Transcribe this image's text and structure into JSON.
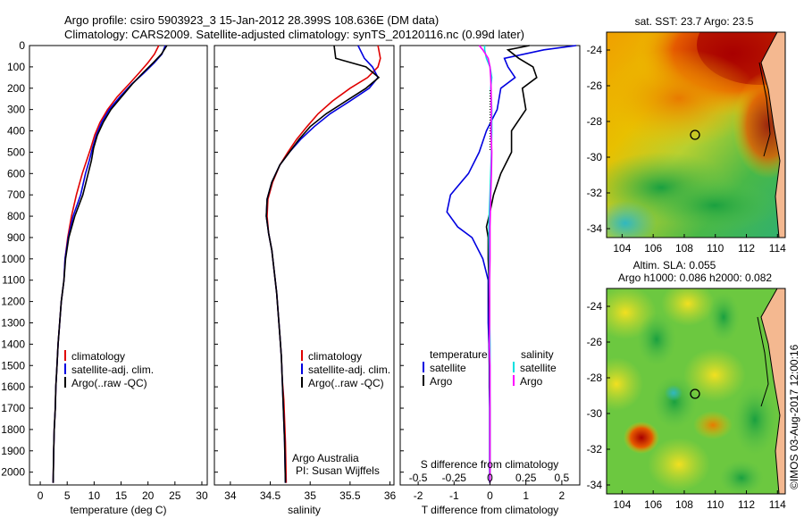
{
  "header": {
    "line1": "Argo profile: csiro 5903923_3 15-Jan-2012 28.399S 108.636E (DM data)",
    "line2": "Climatology: CARS2009. Satellite-adjusted climatology: synTS_20120116.nc (0.99d later)"
  },
  "credit": "©IMOS 03-Aug-2017 12:00:16",
  "colors": {
    "climatology": "#e00000",
    "satellite": "#0000e0",
    "argo": "#000000",
    "sal_satellite": "#00e0e0",
    "sal_argo": "#ff00ff"
  },
  "chart_data": [
    {
      "type": "line",
      "xlabel": "temperature (deg C)",
      "ylabel": "",
      "xlim": [
        -2,
        31
      ],
      "ylim": [
        2060,
        0
      ],
      "xticks": [
        "0",
        "5",
        "10",
        "15",
        "20",
        "25",
        "30"
      ],
      "yticks": [
        "0",
        "100",
        "200",
        "300",
        "400",
        "500",
        "600",
        "700",
        "800",
        "900",
        "1000",
        "1100",
        "1200",
        "1300",
        "1400",
        "1500",
        "1600",
        "1700",
        "1800",
        "1900",
        "2000"
      ],
      "legend": [
        "climatology",
        "satellite-adj. clim.",
        "Argo(..raw -QC)"
      ],
      "series": [
        {
          "name": "climatology",
          "color": "#e00000",
          "x": [
            22,
            21.2,
            20,
            18.3,
            16.5,
            14.3,
            12.5,
            11.1,
            10.1,
            9.4,
            8.6,
            7.8,
            6.7,
            5.8,
            5.1,
            4.6,
            4.4,
            3.9,
            3.6,
            3.3,
            3.1,
            2.9,
            2.8,
            2.6,
            2.5,
            2.4
          ],
          "y": [
            0,
            40,
            80,
            130,
            180,
            240,
            300,
            360,
            420,
            480,
            540,
            600,
            700,
            800,
            900,
            1000,
            1100,
            1200,
            1300,
            1400,
            1500,
            1600,
            1700,
            1800,
            1900,
            2050
          ]
        },
        {
          "name": "satellite-adj. clim.",
          "color": "#0000e0",
          "x": [
            23.2,
            22.6,
            21.2,
            19.2,
            17,
            14.8,
            12.8,
            11.4,
            10.4,
            9.7,
            9.1,
            8.4,
            7.5,
            6.1,
            5.2,
            4.6,
            4.4,
            3.9,
            3.6,
            3.3,
            3.1,
            2.9,
            2.8,
            2.6,
            2.5,
            2.4
          ],
          "y": [
            0,
            40,
            80,
            130,
            180,
            240,
            300,
            360,
            420,
            480,
            540,
            600,
            700,
            800,
            900,
            1000,
            1100,
            1200,
            1300,
            1400,
            1500,
            1600,
            1700,
            1800,
            1900,
            2050
          ]
        },
        {
          "name": "Argo(..raw -QC)",
          "color": "#000000",
          "x": [
            23.5,
            22.5,
            21,
            19,
            17.1,
            15.1,
            13.1,
            11.7,
            10.6,
            9.9,
            9.5,
            8.9,
            7.9,
            6.4,
            5.3,
            4.7,
            4.4,
            3.9,
            3.6,
            3.3,
            3.1,
            2.9,
            2.8,
            2.6,
            2.5,
            2.4
          ],
          "y": [
            0,
            40,
            80,
            130,
            180,
            240,
            300,
            360,
            420,
            480,
            540,
            600,
            700,
            800,
            900,
            1000,
            1100,
            1200,
            1300,
            1400,
            1500,
            1600,
            1700,
            1800,
            1900,
            2050
          ]
        }
      ]
    },
    {
      "type": "line",
      "xlabel": "salinity",
      "xlim": [
        33.8,
        36.05
      ],
      "ylim": [
        2060,
        0
      ],
      "xticks": [
        "34",
        "34.5",
        "35",
        "35.5",
        "36"
      ],
      "legend": [
        "climatology",
        "satellite-adj. clim.",
        "Argo(..raw -QC)"
      ],
      "annotations": [
        "Argo Australia",
        "PI: Susan Wijffels"
      ],
      "series": [
        {
          "name": "climatology",
          "color": "#e00000",
          "x": [
            35.85,
            35.88,
            35.85,
            35.72,
            35.5,
            35.28,
            35.1,
            34.96,
            34.83,
            34.72,
            34.62,
            34.53,
            34.47,
            34.46,
            34.48,
            34.52,
            34.55,
            34.58,
            34.6,
            34.62,
            34.64,
            34.65,
            34.67,
            34.68,
            34.69,
            34.7
          ],
          "y": [
            0,
            60,
            100,
            150,
            200,
            260,
            320,
            380,
            440,
            500,
            560,
            640,
            720,
            800,
            880,
            960,
            1060,
            1160,
            1260,
            1360,
            1460,
            1560,
            1660,
            1760,
            1860,
            2050
          ]
        },
        {
          "name": "satellite-adj. clim.",
          "color": "#0000e0",
          "x": [
            35.6,
            35.68,
            35.78,
            35.85,
            35.74,
            35.5,
            35.25,
            35.05,
            34.88,
            34.74,
            34.62,
            34.52,
            34.46,
            34.45,
            34.48,
            34.52,
            34.55,
            34.58,
            34.6,
            34.62,
            34.64,
            34.65,
            34.66,
            34.67,
            34.68,
            34.69
          ],
          "y": [
            0,
            60,
            100,
            150,
            200,
            260,
            320,
            380,
            440,
            500,
            560,
            640,
            720,
            800,
            880,
            960,
            1060,
            1160,
            1260,
            1360,
            1460,
            1560,
            1660,
            1760,
            1860,
            2050
          ]
        },
        {
          "name": "Argo(..raw -QC)",
          "color": "#000000",
          "x": [
            35.3,
            35.32,
            35.7,
            35.86,
            35.7,
            35.45,
            35.2,
            35,
            34.86,
            34.74,
            34.62,
            34.52,
            34.46,
            34.45,
            34.48,
            34.52,
            34.55,
            34.58,
            34.6,
            34.62,
            34.64,
            34.65,
            34.66,
            34.67,
            34.68,
            34.69
          ],
          "y": [
            0,
            60,
            100,
            150,
            200,
            260,
            320,
            380,
            440,
            500,
            560,
            640,
            720,
            800,
            880,
            960,
            1060,
            1160,
            1260,
            1360,
            1460,
            1560,
            1660,
            1760,
            1860,
            2050
          ]
        }
      ]
    },
    {
      "type": "line",
      "title": "S difference from climatology",
      "xlabel": "T difference from climatology",
      "xlim": [
        -2.5,
        2.5
      ],
      "ylim": [
        2060,
        0
      ],
      "xticks": [
        "-2",
        "-1",
        "0",
        "1",
        "2"
      ],
      "top_ticks": [
        "-0.5",
        "-0.25",
        "0",
        "0.25",
        "0.5"
      ],
      "legend": [
        "temperature",
        "satellite",
        "Argo",
        "salinity",
        "satellite",
        "Argo"
      ],
      "series": [
        {
          "name": "satellite",
          "color": "#0000e0",
          "x": [
            2.4,
            1.5,
            0.4,
            0.5,
            0.7,
            0.3,
            0.2,
            -0.1,
            -0.3,
            -0.6,
            -1.1,
            -1.2,
            -0.9,
            -0.5,
            -0.2,
            -0.05,
            -0.05,
            -0.05,
            -0.03,
            -0.02,
            -0.02,
            -0.01,
            -0.01,
            -0.01,
            -0.01
          ],
          "y": [
            0,
            20,
            60,
            100,
            150,
            200,
            300,
            400,
            500,
            600,
            700,
            780,
            850,
            900,
            1000,
            1100,
            1200,
            1300,
            1400,
            1500,
            1600,
            1700,
            1800,
            1900,
            2050
          ]
        },
        {
          "name": "Argo",
          "color": "#000000",
          "x": [
            1.1,
            0.5,
            0.8,
            1.2,
            1.3,
            0.9,
            1.0,
            0.6,
            0.6,
            0.3,
            0.1,
            0.0,
            -0.1,
            -0.05,
            -0.05,
            -0.03,
            -0.03,
            -0.02,
            -0.02,
            -0.01,
            -0.01,
            0,
            0,
            0,
            0
          ],
          "y": [
            0,
            20,
            60,
            100,
            150,
            200,
            300,
            400,
            500,
            600,
            700,
            780,
            850,
            900,
            1000,
            1100,
            1200,
            1300,
            1400,
            1500,
            1600,
            1700,
            1800,
            1900,
            2050
          ]
        },
        {
          "name": "salinity satellite",
          "color": "#00e0e0",
          "x": [
            -0.15,
            -0.15,
            -0.1,
            0,
            0.05,
            0.02,
            0.05,
            0.05,
            0.04,
            0.02,
            0.0,
            -0.02,
            -0.03,
            -0.03,
            -0.02,
            -0.02,
            -0.01,
            -0.01,
            0,
            0,
            0,
            0,
            0,
            0,
            0
          ],
          "y": [
            0,
            20,
            60,
            100,
            150,
            200,
            300,
            400,
            500,
            600,
            700,
            780,
            850,
            900,
            1000,
            1100,
            1200,
            1300,
            1400,
            1500,
            1600,
            1700,
            1800,
            1900,
            2050
          ]
        },
        {
          "name": "salinity Argo",
          "color": "#ff00ff",
          "x": [
            -0.3,
            -0.2,
            -0.05,
            0.0,
            0.02,
            0.03,
            0.04,
            0.03,
            0.05,
            0.04,
            0.02,
            0.01,
            0,
            0,
            0,
            -0.01,
            -0.01,
            -0.01,
            -0.02,
            0,
            0,
            0,
            0,
            0,
            0
          ],
          "y": [
            0,
            20,
            60,
            100,
            150,
            200,
            300,
            400,
            500,
            600,
            700,
            780,
            850,
            900,
            1000,
            1100,
            1200,
            1300,
            1400,
            1500,
            1600,
            1700,
            1800,
            1900,
            2050
          ]
        }
      ]
    },
    {
      "type": "heatmap",
      "title": "sat. SST: 23.7  Argo: 23.5",
      "xlim": [
        103,
        114.5
      ],
      "ylim": [
        -34.5,
        -23
      ],
      "xticks": [
        "104",
        "106",
        "108",
        "110",
        "112",
        "114"
      ],
      "yticks": [
        "-24",
        "-26",
        "-28",
        "-30",
        "-32",
        "-34"
      ],
      "marker": {
        "lon": 108.636,
        "lat": -28.399
      }
    },
    {
      "type": "heatmap",
      "title": "Altim. SLA: 0.055",
      "subtitle": "Argo h1000: 0.086 h2000: 0.082",
      "xlim": [
        103,
        114.5
      ],
      "ylim": [
        -34.5,
        -23
      ],
      "xticks": [
        "104",
        "106",
        "108",
        "110",
        "112",
        "114"
      ],
      "yticks": [
        "-24",
        "-26",
        "-28",
        "-30",
        "-32",
        "-34"
      ],
      "marker": {
        "lon": 108.636,
        "lat": -28.399
      }
    }
  ]
}
